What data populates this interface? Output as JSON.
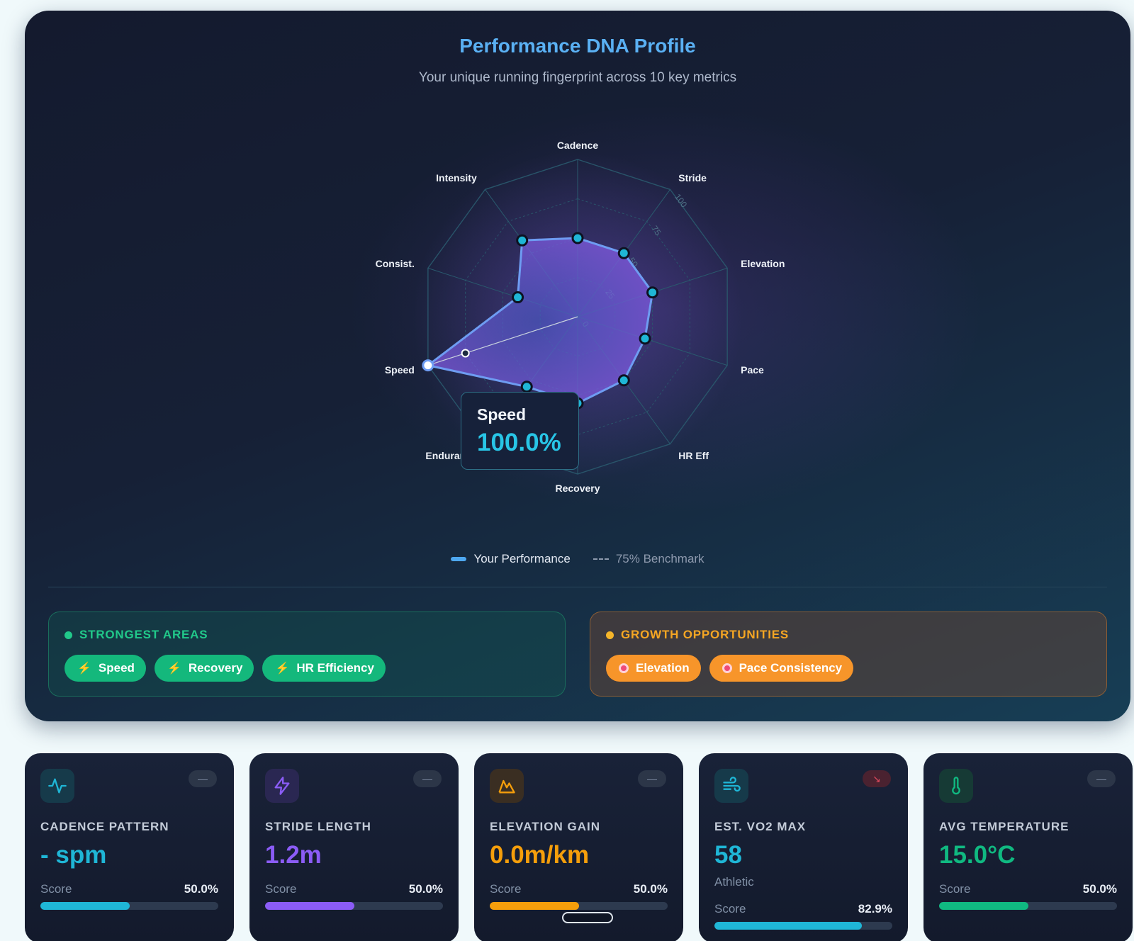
{
  "header": {
    "title": "Performance DNA Profile",
    "subtitle": "Your unique running fingerprint across 10 key metrics"
  },
  "chart_data": {
    "type": "radar",
    "title": "Performance DNA Profile",
    "subtitle": "Your unique running fingerprint across 10 key metrics",
    "axes": [
      "Cadence",
      "Stride",
      "Elevation",
      "Pace",
      "HR Eff",
      "Recovery",
      "Endurance",
      "Speed",
      "Consist.",
      "Intensity"
    ],
    "series": [
      {
        "name": "Your Performance",
        "values": [
          50,
          50,
          50,
          45,
          50,
          55,
          55,
          100,
          40,
          60
        ]
      },
      {
        "name": "75% Benchmark",
        "values": [
          75,
          75,
          75,
          75,
          75,
          75,
          75,
          75,
          75,
          75
        ]
      }
    ],
    "rticks": [
      "0",
      "25",
      "50",
      "75",
      "100"
    ],
    "range": [
      0,
      100
    ],
    "grid": true,
    "legend_placement": "bottom-center",
    "highlight": {
      "axis": "Speed",
      "label": "Speed",
      "value": "100.0%"
    },
    "colors": {
      "performance": "#7c5ce0",
      "performance_line": "#6e9cf2",
      "points": "#1fb6d6",
      "grid": "#2a5a6e"
    }
  },
  "tooltip": {
    "label": "Speed",
    "value": "100.0%"
  },
  "legend": {
    "performance": "Your Performance",
    "benchmark": "75% Benchmark"
  },
  "strongest": {
    "title": "STRONGEST AREAS",
    "items": [
      "Speed",
      "Recovery",
      "HR Efficiency"
    ]
  },
  "growth": {
    "title": "GROWTH OPPORTUNITIES",
    "items": [
      "Elevation",
      "Pace Consistency"
    ]
  },
  "cards": [
    {
      "label": "CADENCE PATTERN",
      "value": "- spm",
      "sub": "",
      "score_label": "Score",
      "score": "50.0%",
      "score_fraction": 0.5,
      "color": "#1fb6d6",
      "icon": "activity-icon",
      "trend": "—"
    },
    {
      "label": "STRIDE LENGTH",
      "value": "1.2m",
      "sub": "",
      "score_label": "Score",
      "score": "50.0%",
      "score_fraction": 0.5,
      "color": "#8b5cf6",
      "icon": "lightning-icon",
      "trend": "—"
    },
    {
      "label": "ELEVATION GAIN",
      "value": "0.0m/km",
      "sub": "",
      "score_label": "Score",
      "score": "50.0%",
      "score_fraction": 0.5,
      "color": "#f59e0b",
      "icon": "mountain-icon",
      "trend": "—"
    },
    {
      "label": "EST. VO2 MAX",
      "value": "58",
      "sub": "Athletic",
      "score_label": "Score",
      "score": "82.9%",
      "score_fraction": 0.829,
      "color": "#1fb6d6",
      "icon": "wind-icon",
      "trend": "↘"
    },
    {
      "label": "AVG TEMPERATURE",
      "value": "15.0°C",
      "sub": "",
      "score_label": "Score",
      "score": "50.0%",
      "score_fraction": 0.5,
      "color": "#10b981",
      "icon": "thermometer-icon",
      "trend": "—"
    }
  ]
}
